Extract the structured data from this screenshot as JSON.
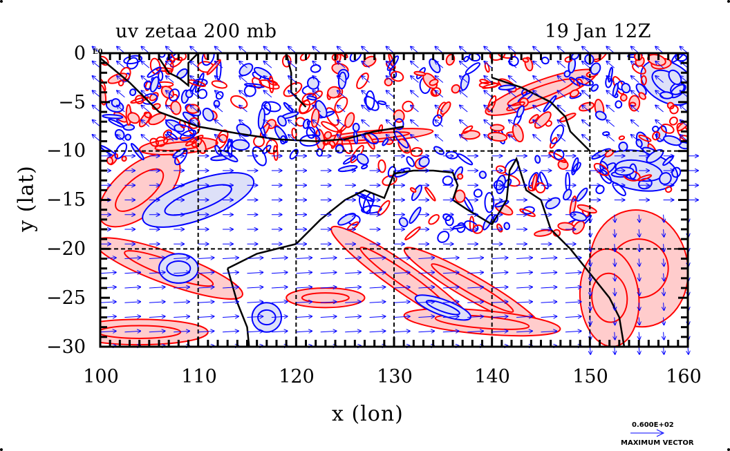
{
  "header": {
    "title_left": "uv zetaa 200 mb",
    "title_right": "19 Jan 12Z"
  },
  "map": {
    "corner_label": "E0",
    "xlabel": "x (lon)",
    "ylabel": "y (lat)",
    "x_ticks": [
      "100",
      "110",
      "120",
      "130",
      "140",
      "150",
      "160"
    ],
    "y_ticks": [
      "0",
      "−5",
      "−10",
      "−15",
      "−20",
      "−25",
      "−30"
    ],
    "lon_range": [
      100,
      160
    ],
    "lat_range": [
      -30,
      0
    ],
    "colors": {
      "positive_contour": "#ff0000",
      "positive_fill": "#ffcccc",
      "negative_contour": "#0000ff",
      "negative_fill": "#dde0f8",
      "vectors": "#0000ff",
      "coastline": "#000000",
      "grid": "#000000"
    }
  },
  "legend": {
    "vector_value": "0.600E+02",
    "vector_label": "MAXIMUM VECTOR"
  }
}
